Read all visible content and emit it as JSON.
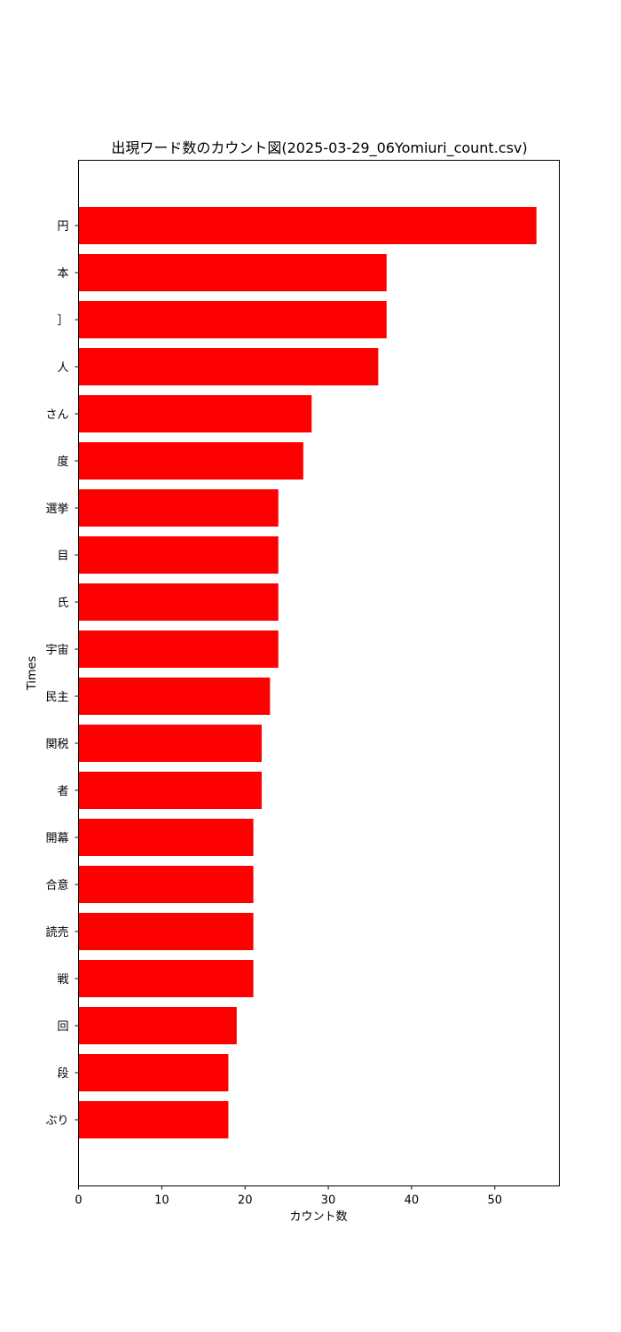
{
  "chart_data": {
    "type": "bar",
    "orientation": "horizontal",
    "title": "出現ワード数のカウント図(2025-03-29_06Yomiuri_count.csv)",
    "xlabel": "カウント数",
    "ylabel": "Times",
    "categories": [
      "円",
      "本",
      "］",
      "人",
      "さん",
      "度",
      "選挙",
      "目",
      "氏",
      "宇宙",
      "民主",
      "関税",
      "者",
      "開幕",
      "合意",
      "読売",
      "戦",
      "回",
      "段",
      "ぶり"
    ],
    "values": [
      55,
      37,
      37,
      36,
      28,
      27,
      24,
      24,
      24,
      24,
      23,
      22,
      22,
      21,
      21,
      21,
      21,
      19,
      18,
      18
    ],
    "xlim": [
      0,
      57.75
    ],
    "xticks": [
      0,
      10,
      20,
      30,
      40,
      50
    ],
    "bar_color": "#ff0000",
    "grid": false,
    "legend": "none"
  }
}
